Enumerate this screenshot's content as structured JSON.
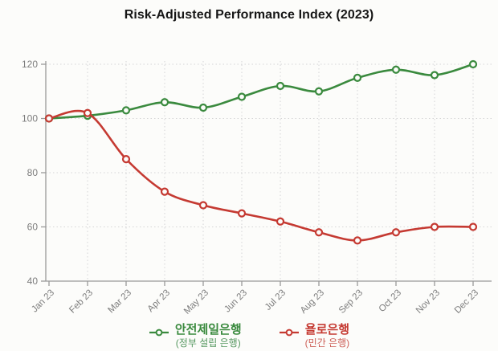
{
  "title": "Risk-Adjusted Performance Index (2023)",
  "colors": {
    "background": "#fcfcfa",
    "title": "#161616",
    "axis": "#999999",
    "grid": "#d5d5d5",
    "tick_label": "#7d7d7d"
  },
  "chart_data": {
    "type": "line",
    "title": "Risk-Adjusted Performance Index (2023)",
    "categories": [
      "Jan 23",
      "Feb 23",
      "Mar 23",
      "Apr 23",
      "May 23",
      "Jun 23",
      "Jul 23",
      "Aug 23",
      "Sep 23",
      "Oct 23",
      "Nov 23",
      "Dec 23"
    ],
    "series": [
      {
        "name": "안전제일은행",
        "subtitle": "(정부 설립 은행)",
        "color": "#3a8a3e",
        "subtitle_color": "#55975f",
        "values": [
          100,
          101,
          103,
          106,
          104,
          108,
          112,
          110,
          115,
          118,
          116,
          120
        ]
      },
      {
        "name": "욜로은행",
        "subtitle": "(민간 은행)",
        "color": "#c53a32",
        "subtitle_color": "#cd6058",
        "values": [
          100,
          102,
          85,
          73,
          68,
          65,
          62,
          58,
          55,
          58,
          60,
          60
        ]
      }
    ],
    "yticks": [
      40,
      60,
      80,
      100,
      120
    ],
    "ylim": [
      40,
      122
    ],
    "grid": true,
    "marker": "open-circle",
    "legend_position": "bottom"
  }
}
